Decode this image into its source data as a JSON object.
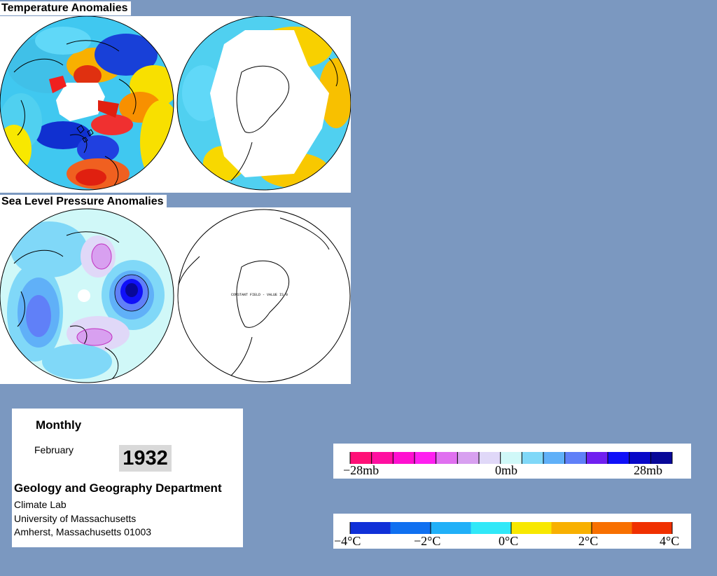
{
  "titles": {
    "temperature": "Temperature Anomalies",
    "pressure": "Sea Level Pressure Anomalies"
  },
  "map_note": "CONSTANT FIELD - VALUE IS 0",
  "info": {
    "period": "Monthly",
    "month": "February",
    "year": "1932",
    "department": "Geology and Geography Department",
    "lines": [
      "Climate Lab",
      "University of Massachusetts",
      "Amherst, Massachusetts 01003"
    ]
  },
  "pressure_scale": {
    "labels": [
      "−28mb",
      "0mb",
      "28mb"
    ],
    "colors": [
      "#ff1077",
      "#ff0fa0",
      "#ff10d0",
      "#ff20f0",
      "#e070f0",
      "#d8a0f0",
      "#e0d8f8",
      "#d0f8f8",
      "#80d8f8",
      "#60b0f8",
      "#6080f8",
      "#7020f0",
      "#1010f8",
      "#0808c8",
      "#080898"
    ]
  },
  "temperature_scale": {
    "labels": [
      "−4°C",
      "−2°C",
      "0°C",
      "2°C",
      "4°C"
    ],
    "colors": [
      "#1030d8",
      "#1070f0",
      "#20b0f8",
      "#30e8f8",
      "#f8e800",
      "#f8b000",
      "#f87000",
      "#f03000"
    ]
  },
  "colors": {
    "background": "#7b98c0",
    "panel": "#ffffff",
    "land_outline": "#000000"
  }
}
